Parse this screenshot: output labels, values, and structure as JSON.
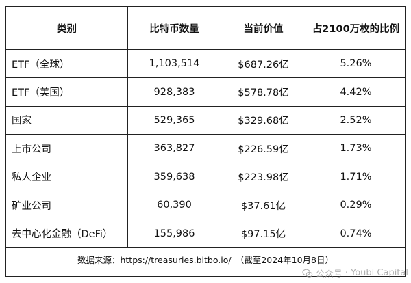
{
  "table": {
    "headers": [
      "类别",
      "比特币数量",
      "当前价值",
      "占2100万枚的比例"
    ],
    "rows": [
      {
        "category": "ETF（全球）",
        "btc": "1,103,514",
        "value": "$687.26亿",
        "ratio": "5.26%"
      },
      {
        "category": "ETF（美国）",
        "btc": "928,383",
        "value": "$578.78亿",
        "ratio": "4.42%"
      },
      {
        "category": "国家",
        "btc": "529,365",
        "value": "$329.68亿",
        "ratio": "2.52%"
      },
      {
        "category": "上市公司",
        "btc": "363,827",
        "value": "$226.59亿",
        "ratio": "1.73%"
      },
      {
        "category": "私人企业",
        "btc": "359,638",
        "value": "$223.98亿",
        "ratio": "1.71%"
      },
      {
        "category": "矿业公司",
        "btc": "60,390",
        "value": "$37.61亿",
        "ratio": "0.29%"
      },
      {
        "category": "去中心化金融（DeFi）",
        "btc": "155,986",
        "value": "$97.15亿",
        "ratio": "0.74%"
      }
    ]
  },
  "footer": {
    "source": "数据来源：https://treasuries.bitbo.io/　（截至2024年10月8日）"
  },
  "watermark": {
    "prefix": "公众号",
    "separator": "·",
    "name": "Youbi Capital",
    "icon": "wechat-icon"
  }
}
